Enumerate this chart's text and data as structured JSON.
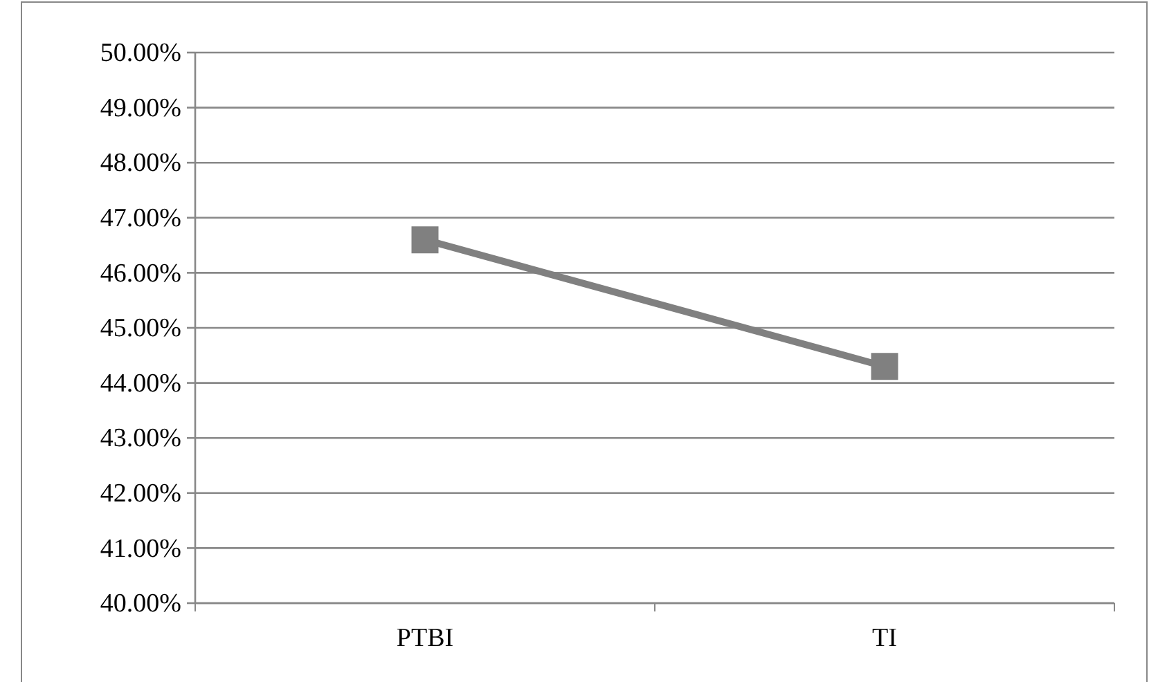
{
  "chart_data": {
    "type": "line",
    "categories": [
      "PTBI",
      "TI"
    ],
    "series": [
      {
        "color": "#808080",
        "values": [
          46.6,
          44.3
        ]
      }
    ],
    "ylim": [
      40,
      50
    ],
    "yticks": [
      {
        "value": 40,
        "label": "40.00%"
      },
      {
        "value": 41,
        "label": "41.00%"
      },
      {
        "value": 42,
        "label": "42.00%"
      },
      {
        "value": 43,
        "label": "43.00%"
      },
      {
        "value": 44,
        "label": "44.00%"
      },
      {
        "value": 45,
        "label": "45.00%"
      },
      {
        "value": 46,
        "label": "46.00%"
      },
      {
        "value": 47,
        "label": "47.00%"
      },
      {
        "value": 48,
        "label": "48.00%"
      },
      {
        "value": 49,
        "label": "49.00%"
      },
      {
        "value": 50,
        "label": "50.00%"
      }
    ],
    "grid": "y",
    "marker": "square",
    "line_style": "solid"
  }
}
